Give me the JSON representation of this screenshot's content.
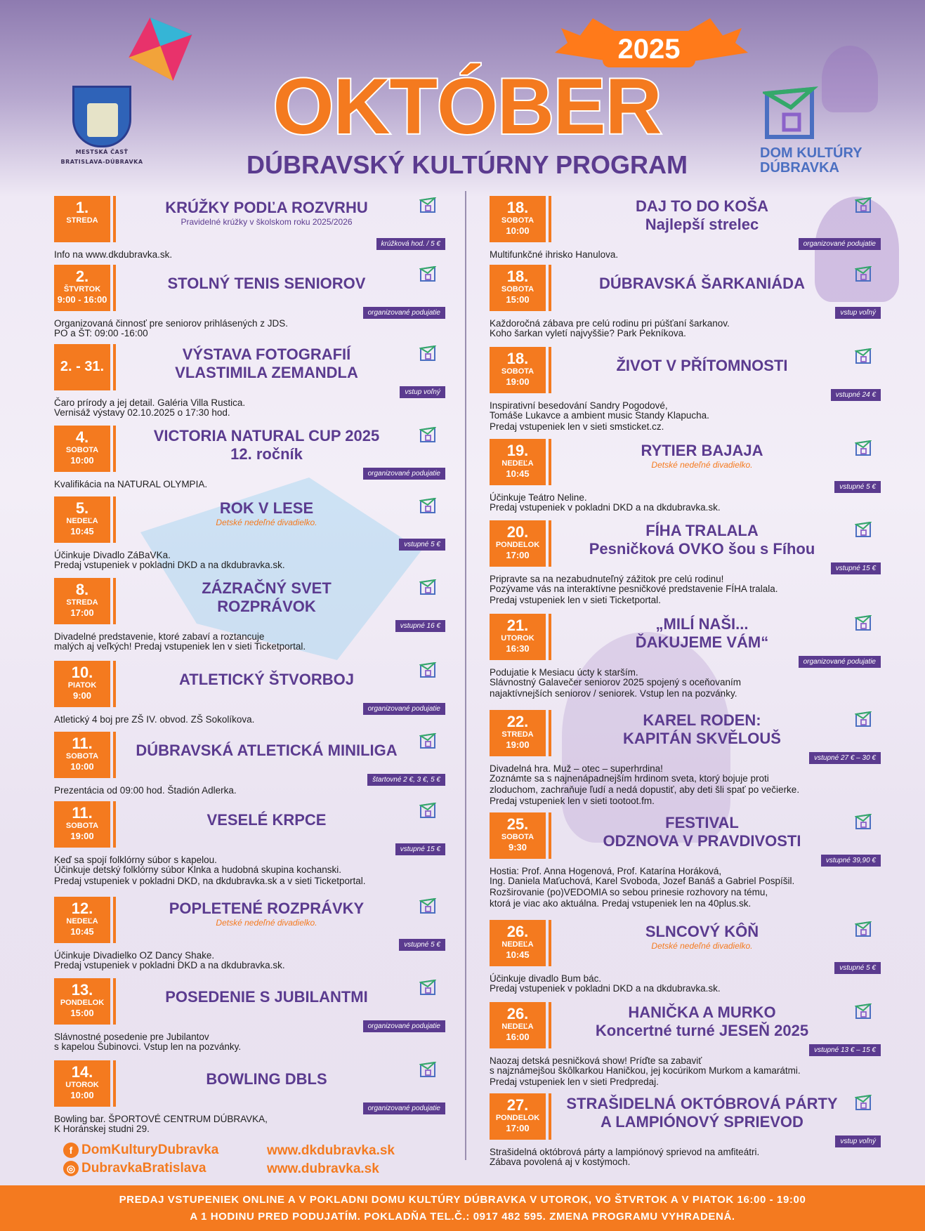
{
  "header": {
    "municipality_line1": "MESTSKÁ ČASŤ",
    "municipality_line2": "BRATISLAVA-DÚBRAVKA",
    "year": "2025",
    "title": "OKTÓBER",
    "subtitle": "DÚBRAVSKÝ KULTÚRNY PROGRAM",
    "dkd_line1": "DOM KULTÚRY",
    "dkd_line2": "DÚBRAVKA"
  },
  "colors": {
    "accent": "#f47a1f",
    "purple": "#5b3b8f",
    "dkd_blue": "#4b6fc1"
  },
  "left_events": [
    {
      "day": "1.",
      "dow": "STREDA",
      "time": "",
      "title1": "KRÚŽKY PODĽA ROZVRHU",
      "title2": "",
      "sub": "Pravidelné krúžky v školskom roku 2025/2026",
      "sub_style": "plain",
      "badge": "krúžková hod. / 5 €",
      "desc1": "Info na www.dkdubravka.sk.",
      "desc2": "",
      "desc3": "",
      "desc2_italic": false
    },
    {
      "day": "2.",
      "dow": "ŠTVRTOK",
      "time": "9:00 - 16:00",
      "title1": "STOLNÝ TENIS SENIOROV",
      "title2": "",
      "sub": "",
      "sub_style": "plain",
      "badge": "organizované podujatie",
      "desc1": "Organizovaná činnosť pre seniorov prihlásených z JDS.",
      "desc2": "PO a ŠT: 09:00 -16:00",
      "desc3": "",
      "desc2_italic": true
    },
    {
      "day": "2. - 31.",
      "dow": "",
      "time": "",
      "title1": "VÝSTAVA FOTOGRAFIÍ",
      "title2": "VLASTIMILA ZEMANDLA",
      "sub": "",
      "sub_style": "plain",
      "badge": "vstup voľný",
      "desc1": "Čaro prírody a jej detail. Galéria Villa Rustica.",
      "desc2": "Vernisáž výstavy 02.10.2025 o 17:30 hod.",
      "desc3": "",
      "desc2_italic": false
    },
    {
      "day": "4.",
      "dow": "SOBOTA",
      "time": "10:00",
      "title1": "VICTORIA NATURAL CUP 2025",
      "title2": "12. ročník",
      "sub": "",
      "sub_style": "plain",
      "badge": "organizované podujatie",
      "desc1": "Kvalifikácia na NATURAL OLYMPIA.",
      "desc2": "",
      "desc3": "",
      "desc2_italic": false
    },
    {
      "day": "5.",
      "dow": "NEDEĽA",
      "time": "10:45",
      "title1": "ROK V LESE",
      "title2": "",
      "sub": "Detské nedeľné divadielko.",
      "sub_style": "orange",
      "badge": "vstupné 5 €",
      "desc1": "Účinkuje Divadlo ZáBaVKa.",
      "desc2": "Predaj vstupeniek v pokladni DKD a na dkdubravka.sk.",
      "desc3": "",
      "desc2_italic": true
    },
    {
      "day": "8.",
      "dow": "STREDA",
      "time": "17:00",
      "title1": "ZÁZRAČNÝ SVET",
      "title2": "ROZPRÁVOK",
      "sub": "",
      "sub_style": "plain",
      "badge": "vstupné 16 €",
      "desc1": "Divadelné predstavenie, ktoré zabaví a roztancuje",
      "desc2": "malých aj veľkých! Predaj vstupeniek len v sieti Ticketportal.",
      "desc3": "",
      "desc2_italic": false
    },
    {
      "day": "10.",
      "dow": "PIATOK",
      "time": "9:00",
      "title1": "ATLETICKÝ ŠTVORBOJ",
      "title2": "",
      "sub": "",
      "sub_style": "plain",
      "badge": "organizované podujatie",
      "desc1": "Atletický 4 boj pre ZŠ IV. obvod. ZŠ Sokolíkova.",
      "desc2": "",
      "desc3": "",
      "desc2_italic": false
    },
    {
      "day": "11.",
      "dow": "SOBOTA",
      "time": "10:00",
      "title1": "DÚBRAVSKÁ ATLETICKÁ MINILIGA",
      "title2": "",
      "sub": "",
      "sub_style": "plain",
      "badge": "štartovné 2 €, 3 €, 5 €",
      "desc1": "Prezentácia od 09:00 hod. Štadión Adlerka.",
      "desc2": "",
      "desc3": "",
      "desc2_italic": false
    },
    {
      "day": "11.",
      "dow": "SOBOTA",
      "time": "19:00",
      "title1": "VESELÉ KRPCE",
      "title2": "",
      "sub": "",
      "sub_style": "plain",
      "badge": "vstupné 15 €",
      "desc1": "Keď sa spojí folklórny súbor s kapelou.",
      "desc2": "Účinkuje detský folklórny súbor Klnka a hudobná skupina kochanski.",
      "desc3": "Predaj vstupeniek v pokladni DKD, na dkdubravka.sk a v sieti Ticketportal.",
      "desc2_italic": false
    },
    {
      "day": "12.",
      "dow": "NEDEĽA",
      "time": "10:45",
      "title1": "POPLETENÉ ROZPRÁVKY",
      "title2": "",
      "sub": "Detské nedeľné divadielko.",
      "sub_style": "orange",
      "badge": "vstupné 5 €",
      "desc1": "Účinkuje Divadielko OZ Dancy Shake.",
      "desc2": "Predaj vstupeniek v pokladni DKD a na dkdubravka.sk.",
      "desc3": "",
      "desc2_italic": true
    },
    {
      "day": "13.",
      "dow": "PONDELOK",
      "time": "15:00",
      "title1": "POSEDENIE S JUBILANTMI",
      "title2": "",
      "sub": "",
      "sub_style": "plain",
      "badge": "organizované podujatie",
      "desc1": "Slávnostné posedenie pre Jubilantov",
      "desc2": "s kapelou Šubinovci. Vstup len na pozvánky.",
      "desc3": "",
      "desc2_italic": false
    },
    {
      "day": "14.",
      "dow": "UTOROK",
      "time": "10:00",
      "title1": "BOWLING DBLS",
      "title2": "",
      "sub": "",
      "sub_style": "plain",
      "badge": "organizované podujatie",
      "desc1": "Bowling bar. ŠPORTOVÉ CENTRUM DÚBRAVKA,",
      "desc2": "K Horánskej studni 29.",
      "desc3": "",
      "desc2_italic": true
    }
  ],
  "right_events": [
    {
      "day": "18.",
      "dow": "SOBOTA",
      "time": "10:00",
      "title1": "DAJ TO DO KOŠA",
      "title2": "Najlepší strelec",
      "sub": "",
      "sub_style": "plain",
      "badge": "organizované podujatie",
      "desc1": "Multifunkčné ihrisko Hanulova.",
      "desc2": "",
      "desc3": "",
      "desc2_italic": false
    },
    {
      "day": "18.",
      "dow": "SOBOTA",
      "time": "15:00",
      "title1": "DÚBRAVSKÁ ŠARKANIÁDA",
      "title2": "",
      "sub": "",
      "sub_style": "plain",
      "badge": "vstup voľný",
      "desc1": "Každoročná zábava pre celú rodinu pri púšťaní šarkanov.",
      "desc2": "Koho šarkan vyletí najvyššie? Park Pekníkova.",
      "desc3": "",
      "desc2_italic": false
    },
    {
      "day": "18.",
      "dow": "SOBOTA",
      "time": "19:00",
      "title1": "ŽIVOT V PŘÍTOMNOSTI",
      "title2": "",
      "sub": "",
      "sub_style": "plain",
      "badge": "vstupné 24 €",
      "desc1": "Inspirativní besedování Sandry Pogodové,",
      "desc2": "Tomáše Lukavce a ambient music Standy Klapucha.",
      "desc3": "Predaj vstupeniek len v sieti smsticket.cz.",
      "desc2_italic": false
    },
    {
      "day": "19.",
      "dow": "NEDEĽA",
      "time": "10:45",
      "title1": "RYTIER BAJAJA",
      "title2": "",
      "sub": "Detské nedeľné divadielko.",
      "sub_style": "orange",
      "badge": "vstupné 5 €",
      "desc1": "Účinkuje Teátro Neline.",
      "desc2": "Predaj vstupeniek v pokladni DKD a na dkdubravka.sk.",
      "desc3": "",
      "desc2_italic": true
    },
    {
      "day": "20.",
      "dow": "PONDELOK",
      "time": "17:00",
      "title1": "FÍHA TRALALA",
      "title2": "Pesničková OVKO šou s Fíhou",
      "sub": "",
      "sub_style": "plain",
      "badge": "vstupné 15 €",
      "desc1": "Pripravte sa na nezabudnuteľný zážitok pre celú rodinu!",
      "desc2": "Pozývame vás na interaktívne pesničkové predstavenie FÍHA tralala.",
      "desc3": "Predaj vstupeniek len v sieti Ticketportal.",
      "desc2_italic": false
    },
    {
      "day": "21.",
      "dow": "UTOROK",
      "time": "16:30",
      "title1": "„MILÍ NAŠI...",
      "title2": "ĎAKUJEME VÁM“",
      "sub": "",
      "sub_style": "plain",
      "badge": "organizované podujatie",
      "desc1": "Podujatie k Mesiacu úcty k starším.",
      "desc2": "Slávnostný Galavečer seniorov 2025 spojený s oceňovaním",
      "desc3": "najaktívnejších seniorov / seniorek. Vstup len na pozvánky.",
      "desc2_italic": false
    },
    {
      "day": "22.",
      "dow": "STREDA",
      "time": "19:00",
      "title1": "KAREL RODEN:",
      "title2": "KAPITÁN SKVĚLOUŠ",
      "sub": "",
      "sub_style": "plain",
      "badge": "vstupné 27 € – 30 €",
      "desc1": "Divadelná hra. Muž – otec – superhrdina!",
      "desc2": "Zoznámte sa s najnenápadnejším hrdinom sveta, ktorý bojuje proti",
      "desc3": "zloduchom, zachraňuje ľudí a nedá dopustiť, aby deti šli spať po večierke.",
      "desc4": "Predaj vstupeniek len v sieti tootoot.fm.",
      "desc2_italic": false
    },
    {
      "day": "25.",
      "dow": "SOBOTA",
      "time": "9:30",
      "title1": "FESTIVAL",
      "title2": "ODZNOVA V PRAVDIVOSTI",
      "sub": "",
      "sub_style": "plain",
      "badge": "vstupné 39,90 €",
      "desc1": "Hostia: Prof. Anna Hogenová, Prof. Katarína Horáková,",
      "desc2": "Ing. Daniela Maťuchová, Karel Svoboda, Jozef Banáš a Gabriel Pospíšil.",
      "desc3": "Rozširovanie (po)VEDOMIA so sebou prinesie rozhovory na tému,",
      "desc4": "ktorá je viac ako aktuálna. Predaj vstupeniek len na 40plus.sk.",
      "desc2_italic": false
    },
    {
      "day": "26.",
      "dow": "NEDEĽA",
      "time": "10:45",
      "title1": "SLNCOVÝ KÔŇ",
      "title2": "",
      "sub": "Detské nedeľné divadielko.",
      "sub_style": "orange",
      "badge": "vstupné 5 €",
      "desc1": "Účinkuje divadlo Bum bác.",
      "desc2": "Predaj vstupeniek v pokladni DKD a na dkdubravka.sk.",
      "desc3": "",
      "desc2_italic": true
    },
    {
      "day": "26.",
      "dow": "NEDEĽA",
      "time": "16:00",
      "title1": "HANIČKA A MURKO",
      "title2": "Koncertné turné JESEŇ 2025",
      "sub": "",
      "sub_style": "plain",
      "badge": "vstupné 13 € – 15 €",
      "desc1": "Naozaj detská pesničková show! Príďte sa zabaviť",
      "desc2": "s najznámejšou škôlkarkou Haničkou, jej kocúrikom Murkom a kamarátmi.",
      "desc3": "Predaj vstupeniek len v sieti Predpredaj.",
      "desc2_italic": false
    },
    {
      "day": "27.",
      "dow": "PONDELOK",
      "time": "17:00",
      "title1": "STRAŠIDELNÁ OKTÓBROVÁ PÁRTY",
      "title2": "A LAMPIÓNOVÝ SPRIEVOD",
      "sub": "",
      "sub_style": "plain",
      "badge": "vstup voľný",
      "desc1": "Strašidelná októbrová párty a lampiónový sprievod na amfiteátri.",
      "desc2": "Zábava povolená aj v kostýmoch.",
      "desc3": "",
      "desc2_italic": false
    }
  ],
  "social": {
    "facebook": "DomKulturyDubravka",
    "instagram": "DubravkaBratislava",
    "web1": "www.dkdubravka.sk",
    "web2": "www.dubravka.sk",
    "facebook_icon": "facebook-icon",
    "instagram_icon": "instagram-icon"
  },
  "footer": {
    "line1": "PREDAJ VSTUPENIEK ONLINE A V POKLADNI DOMU KULTÚRY DÚBRAVKA V UTOROK, VO ŠTVRTOK A V PIATOK 16:00 - 19:00",
    "line2": "A 1 HODINU PRED PODUJATÍM. POKLADŇA TEL.Č.: 0917 482 595. ZMENA PROGRAMU VYHRADENÁ."
  }
}
